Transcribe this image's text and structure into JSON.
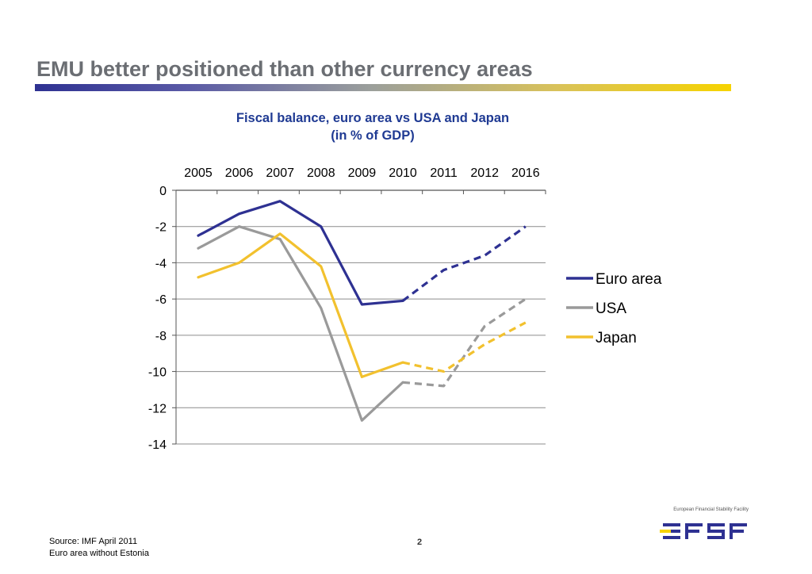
{
  "slide": {
    "title": "EMU better positioned than other currency areas",
    "page_number": "2"
  },
  "footer": {
    "source_line1": "Source: IMF April 2011",
    "source_line2": "Euro area without Estonia"
  },
  "logo": {
    "caption": "European Financial Stability Facility",
    "wordmark": "EFSF",
    "colors": {
      "blue": "#2e3192",
      "yellow": "#f6d300"
    }
  },
  "chart_data": {
    "type": "line",
    "title_line1": "Fiscal balance, euro area vs USA and Japan",
    "title_line2": "(in % of GDP)",
    "x": [
      "2005",
      "2006",
      "2007",
      "2008",
      "2009",
      "2010",
      "2011",
      "2012",
      "2016"
    ],
    "x_axis_position": "top",
    "ylim": [
      -14,
      0
    ],
    "yticks": [
      "0",
      "-2",
      "-4",
      "-6",
      "-8",
      "-10",
      "-12",
      "-14"
    ],
    "ytick_values": [
      0,
      -2,
      -4,
      -6,
      -8,
      -10,
      -12,
      -14
    ],
    "grid": true,
    "legend_position": "right",
    "projection_start": "2010",
    "projection_style": "dashed",
    "series": [
      {
        "name": "Euro area",
        "color": "#2e3192",
        "values": [
          -2.5,
          -1.3,
          -0.6,
          -2.0,
          -6.3,
          -6.1,
          -4.4,
          -3.6,
          -2.0
        ]
      },
      {
        "name": "USA",
        "color": "#9a9a9a",
        "values": [
          -3.2,
          -2.0,
          -2.7,
          -6.5,
          -12.7,
          -10.6,
          -10.8,
          -7.5,
          -6.0
        ]
      },
      {
        "name": "Japan",
        "color": "#f2c12e",
        "values": [
          -4.8,
          -4.0,
          -2.4,
          -4.2,
          -10.3,
          -9.5,
          -10.0,
          -8.5,
          -7.3
        ]
      }
    ]
  }
}
